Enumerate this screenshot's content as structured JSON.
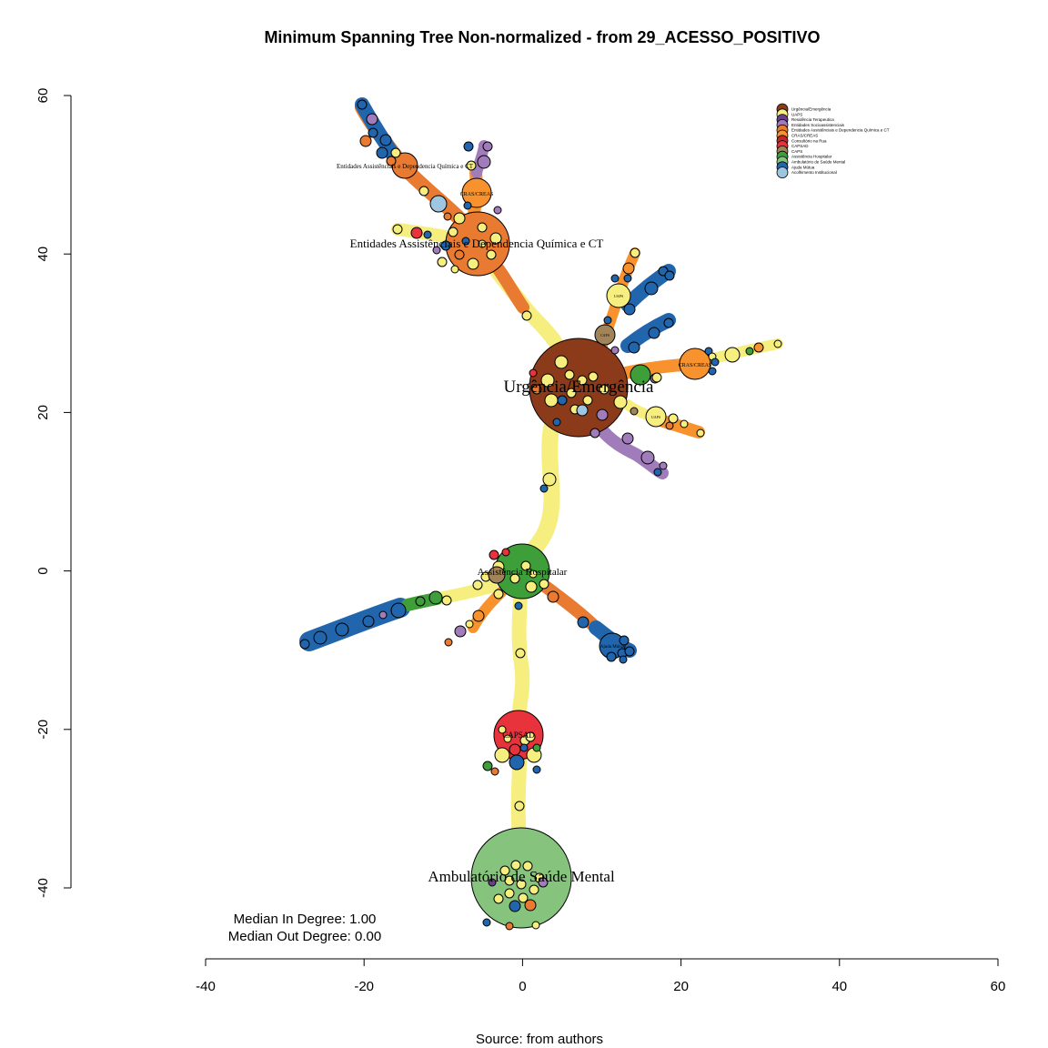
{
  "title": "Minimum Spanning Tree Non-normalized - from 29_ACESSO_POSITIVO",
  "source_caption": "Source: from authors",
  "stats": {
    "median_in": "Median In Degree: 1.00",
    "median_out": "Median Out Degree: 0.00"
  },
  "axes": {
    "x_ticks": [
      "-40",
      "-20",
      "0",
      "20",
      "40",
      "60"
    ],
    "x_values": [
      -40,
      -20,
      0,
      20,
      40,
      60
    ],
    "y_ticks": [
      "60",
      "40",
      "20",
      "0",
      "-20",
      "-40"
    ],
    "y_values": [
      60,
      40,
      20,
      0,
      -20,
      -40
    ]
  },
  "legend": [
    {
      "label": "Urgência/Emergência",
      "color": "#8B3A1A"
    },
    {
      "label": "UAPS",
      "color": "#F6EE7E"
    },
    {
      "label": "Residência Terapeutica",
      "color": "#6A3D8A"
    },
    {
      "label": "Entidades Socioassistenciais",
      "color": "#A07DBA"
    },
    {
      "label": "Entidades Assistênciais e Dependencia Química e CT",
      "color": "#E87A32"
    },
    {
      "label": "CRAS/CREAS",
      "color": "#F7922F"
    },
    {
      "label": "Consultório na Rua",
      "color": "#C1272D"
    },
    {
      "label": "CAPSAD",
      "color": "#E8323C"
    },
    {
      "label": "CAPS",
      "color": "#A2845A"
    },
    {
      "label": "Assistência Hospitalar",
      "color": "#3D9E3A"
    },
    {
      "label": "Ambulatório de Saúde Mental",
      "color": "#86C47E"
    },
    {
      "label": "Ajuda Mútua",
      "color": "#2166AC"
    },
    {
      "label": "Acolhimento Institucional",
      "color": "#9FC6E0"
    }
  ],
  "hub_labels": {
    "urgencia": "Urgência/Emergência",
    "entidades": "Entidades Assistênciais e Dependencia Química e CT",
    "entidades_small": "Entidades Assistênciais e Dependencia Química e CT",
    "hospitalar": "Assistência Hospitalar",
    "capsad": "CAPSAD",
    "ambulatorio": "Ambulatório de Saúde Mental",
    "cras_top": "CRAS/CREAS",
    "cras_right": "CRAS/CREAS",
    "uaps_1": "UAPS",
    "uaps_2": "UAPS",
    "caps": "CAPS",
    "ajuda": "Ajuda Mútua"
  },
  "colors": {
    "urgencia": "#8B3A1A",
    "uaps": "#F6EE7E",
    "residencia": "#6A3D8A",
    "socio": "#A07DBA",
    "entidades": "#E87A32",
    "cras": "#F7922F",
    "consultorio": "#C1272D",
    "capsad": "#E8323C",
    "caps": "#A2845A",
    "hospitalar": "#3D9E3A",
    "ambulatorio": "#86C47E",
    "ajuda": "#2166AC",
    "acolhimento": "#9FC6E0"
  }
}
